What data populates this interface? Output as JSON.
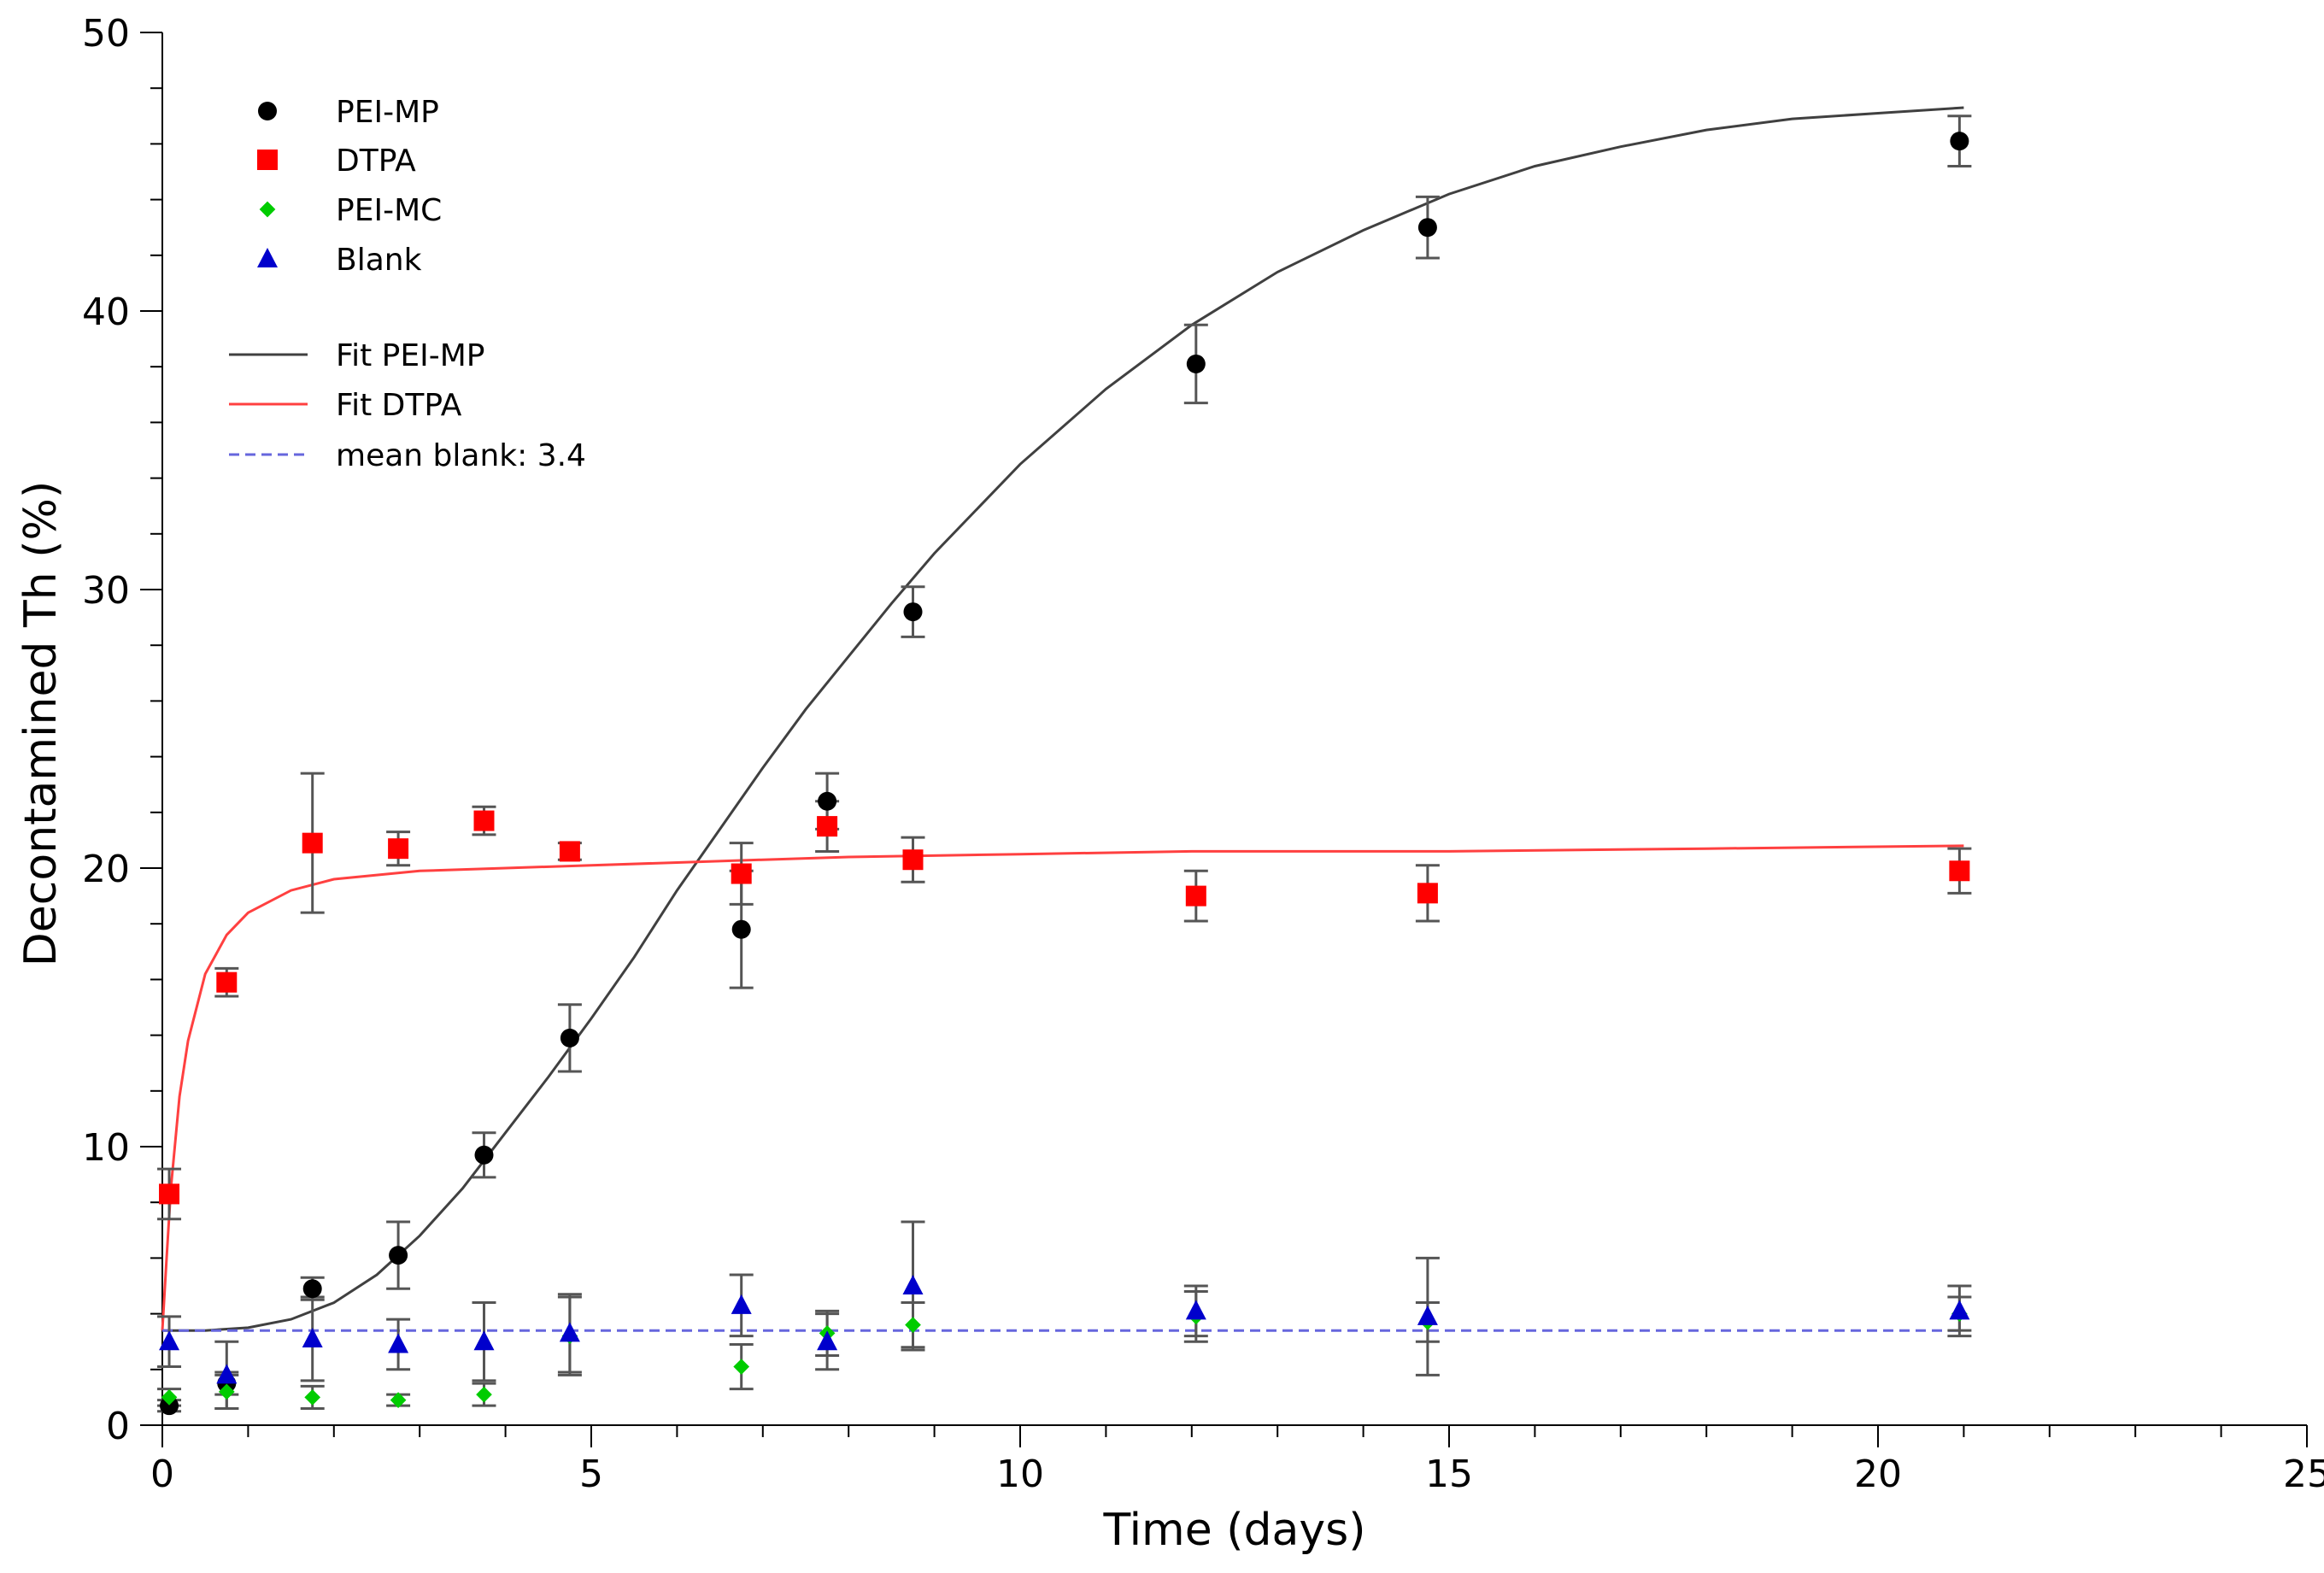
{
  "chart_data": {
    "type": "scatter",
    "title": "",
    "xlabel": "Time (days)",
    "ylabel": "Decontamined Th (%)",
    "xlim": [
      0,
      25
    ],
    "ylim": [
      0,
      50
    ],
    "xticks": [
      0,
      5,
      10,
      15,
      20,
      25
    ],
    "yticks": [
      0,
      10,
      20,
      30,
      40,
      50
    ],
    "x_tick_labels": [
      "0",
      "5",
      "10",
      "15",
      "20",
      "25"
    ],
    "y_tick_labels": [
      "0",
      "10",
      "20",
      "30",
      "40",
      "50"
    ],
    "legend_position": "top-left",
    "series": [
      {
        "name": "PEI-MP",
        "color": "#000000",
        "marker": "circle",
        "x": [
          0.08,
          0.75,
          1.75,
          2.75,
          3.75,
          4.75,
          6.75,
          7.75,
          8.75,
          12.05,
          14.75,
          20.95
        ],
        "y": [
          0.7,
          1.5,
          4.9,
          6.1,
          9.7,
          13.9,
          17.8,
          22.4,
          29.2,
          38.1,
          43.0,
          46.1
        ],
        "err": [
          0.2,
          0.4,
          0.4,
          1.2,
          0.8,
          1.2,
          2.1,
          1.0,
          0.9,
          1.4,
          1.1,
          0.9
        ]
      },
      {
        "name": "DTPA",
        "color": "#ff0000",
        "marker": "square",
        "x": [
          0.08,
          0.75,
          1.75,
          2.75,
          3.75,
          4.75,
          6.75,
          7.75,
          8.75,
          12.05,
          14.75,
          20.95
        ],
        "y": [
          8.3,
          15.9,
          20.9,
          20.7,
          21.7,
          20.6,
          19.8,
          21.5,
          20.3,
          19.0,
          19.1,
          19.9
        ],
        "err": [
          0.9,
          0.5,
          2.5,
          0.6,
          0.5,
          0.3,
          1.1,
          0.9,
          0.8,
          0.9,
          1.0,
          0.8
        ]
      },
      {
        "name": "PEI-MC",
        "color": "#00cc00",
        "marker": "diamond",
        "x": [
          0.08,
          0.75,
          1.75,
          2.75,
          3.75,
          4.75,
          6.75,
          7.75,
          8.75,
          12.05,
          14.75,
          20.95
        ],
        "y": [
          1.0,
          1.2,
          1.0,
          0.9,
          1.1,
          3.2,
          2.1,
          3.3,
          3.6,
          3.9,
          3.7,
          4.0
        ],
        "err": [
          0.3,
          0.6,
          0.4,
          0.2,
          0.4,
          1.4,
          0.8,
          0.8,
          0.8,
          0.9,
          0.7,
          0.6
        ]
      },
      {
        "name": "Blank",
        "color": "#0000cc",
        "marker": "triangle",
        "x": [
          0.08,
          0.75,
          1.75,
          2.75,
          3.75,
          4.75,
          6.75,
          7.75,
          8.75,
          12.05,
          14.75,
          20.95
        ],
        "y": [
          3.0,
          1.8,
          3.1,
          2.9,
          3.0,
          3.3,
          4.3,
          3.0,
          5.0,
          4.1,
          3.9,
          4.1
        ],
        "err": [
          0.9,
          1.2,
          1.5,
          0.9,
          1.4,
          1.4,
          1.1,
          1.0,
          2.3,
          0.9,
          2.1,
          0.9
        ]
      }
    ],
    "fits": [
      {
        "name": "Fit PEI-MP",
        "color": "#404040",
        "style": "solid",
        "x": [
          0,
          0.5,
          1,
          1.5,
          2,
          2.5,
          3,
          3.5,
          4,
          4.5,
          5,
          5.5,
          6,
          6.5,
          7,
          7.5,
          8,
          8.5,
          9,
          10,
          11,
          12,
          13,
          14,
          15,
          16,
          17,
          18,
          19,
          20,
          21
        ],
        "y": [
          3.4,
          3.4,
          3.5,
          3.8,
          4.4,
          5.4,
          6.8,
          8.5,
          10.5,
          12.5,
          14.6,
          16.8,
          19.2,
          21.4,
          23.6,
          25.7,
          27.6,
          29.5,
          31.3,
          34.5,
          37.2,
          39.5,
          41.4,
          42.9,
          44.2,
          45.2,
          45.9,
          46.5,
          46.9,
          47.1,
          47.3
        ]
      },
      {
        "name": "Fit DTPA",
        "color": "#ff4040",
        "style": "solid",
        "x": [
          0,
          0.05,
          0.1,
          0.2,
          0.3,
          0.5,
          0.75,
          1,
          1.5,
          2,
          3,
          4,
          5,
          6,
          7,
          8,
          10,
          12,
          15,
          18,
          21
        ],
        "y": [
          3.4,
          6.0,
          8.5,
          11.8,
          13.8,
          16.2,
          17.6,
          18.4,
          19.2,
          19.6,
          19.9,
          20.0,
          20.1,
          20.2,
          20.3,
          20.4,
          20.5,
          20.6,
          20.6,
          20.7,
          20.8
        ]
      },
      {
        "name": "mean blank: 3.4",
        "color": "#6666dd",
        "style": "dashed",
        "x": [
          0,
          21
        ],
        "y": [
          3.4,
          3.4
        ]
      }
    ]
  }
}
